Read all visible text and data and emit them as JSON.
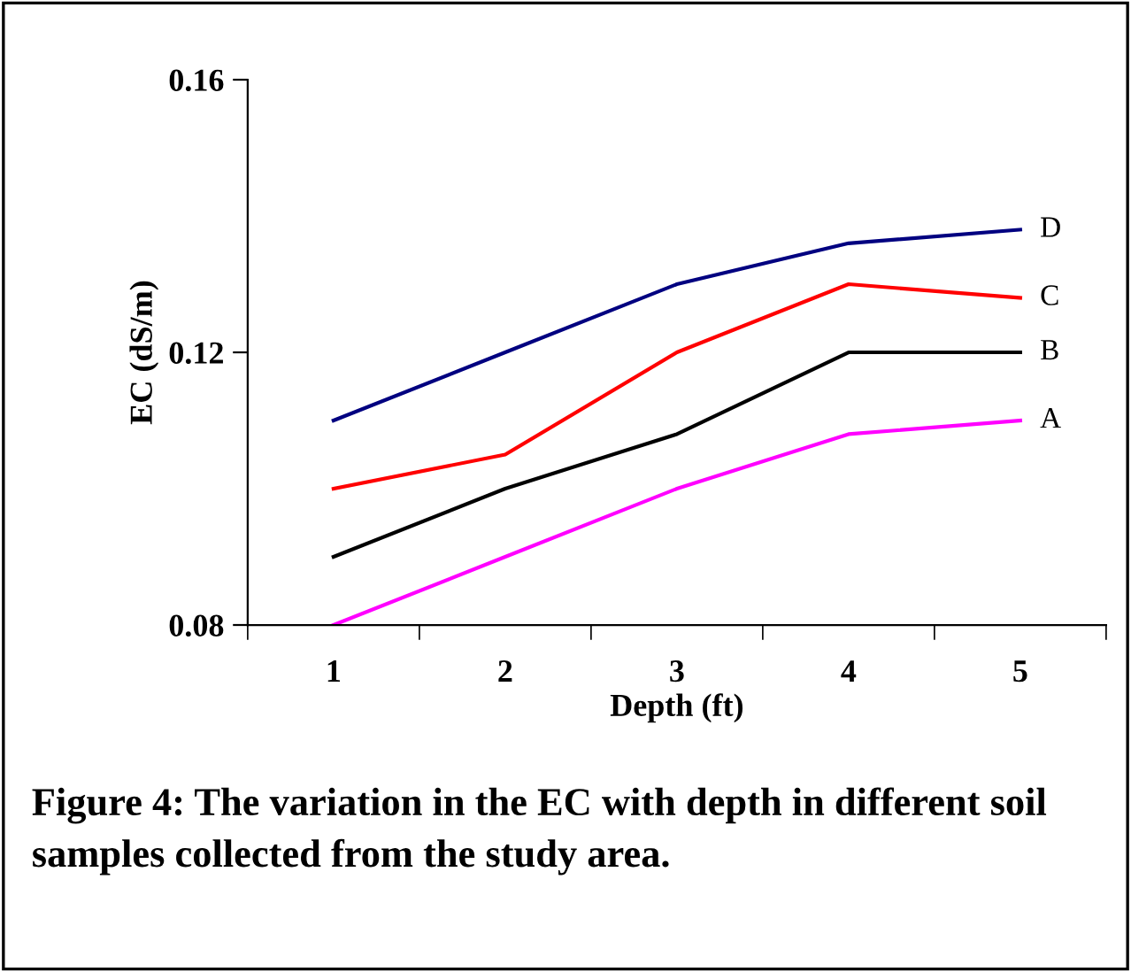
{
  "chart_data": {
    "type": "line",
    "xlabel": "Depth (ft)",
    "ylabel": "EC (dS/m)",
    "categories": [
      "1",
      "2",
      "3",
      "4",
      "5"
    ],
    "series": [
      {
        "name": "D",
        "color": "#000080",
        "values": [
          0.11,
          0.12,
          0.13,
          0.136,
          0.138
        ]
      },
      {
        "name": "C",
        "color": "#ff0000",
        "values": [
          0.1,
          0.105,
          0.12,
          0.13,
          0.128
        ]
      },
      {
        "name": "B",
        "color": "#000000",
        "values": [
          0.09,
          0.1,
          0.108,
          0.12,
          0.12
        ]
      },
      {
        "name": "A",
        "color": "#ff00ff",
        "values": [
          0.08,
          0.09,
          0.1,
          0.108,
          0.11
        ]
      }
    ],
    "ylim": [
      0.08,
      0.16
    ],
    "yticks": [
      0.08,
      0.12,
      0.16
    ],
    "grid": false,
    "legend": false,
    "marker": "none",
    "line_style": "solid",
    "annotations": [
      "Figure 4: The variation in the EC with depth in different soil samples collected from the study area."
    ]
  }
}
